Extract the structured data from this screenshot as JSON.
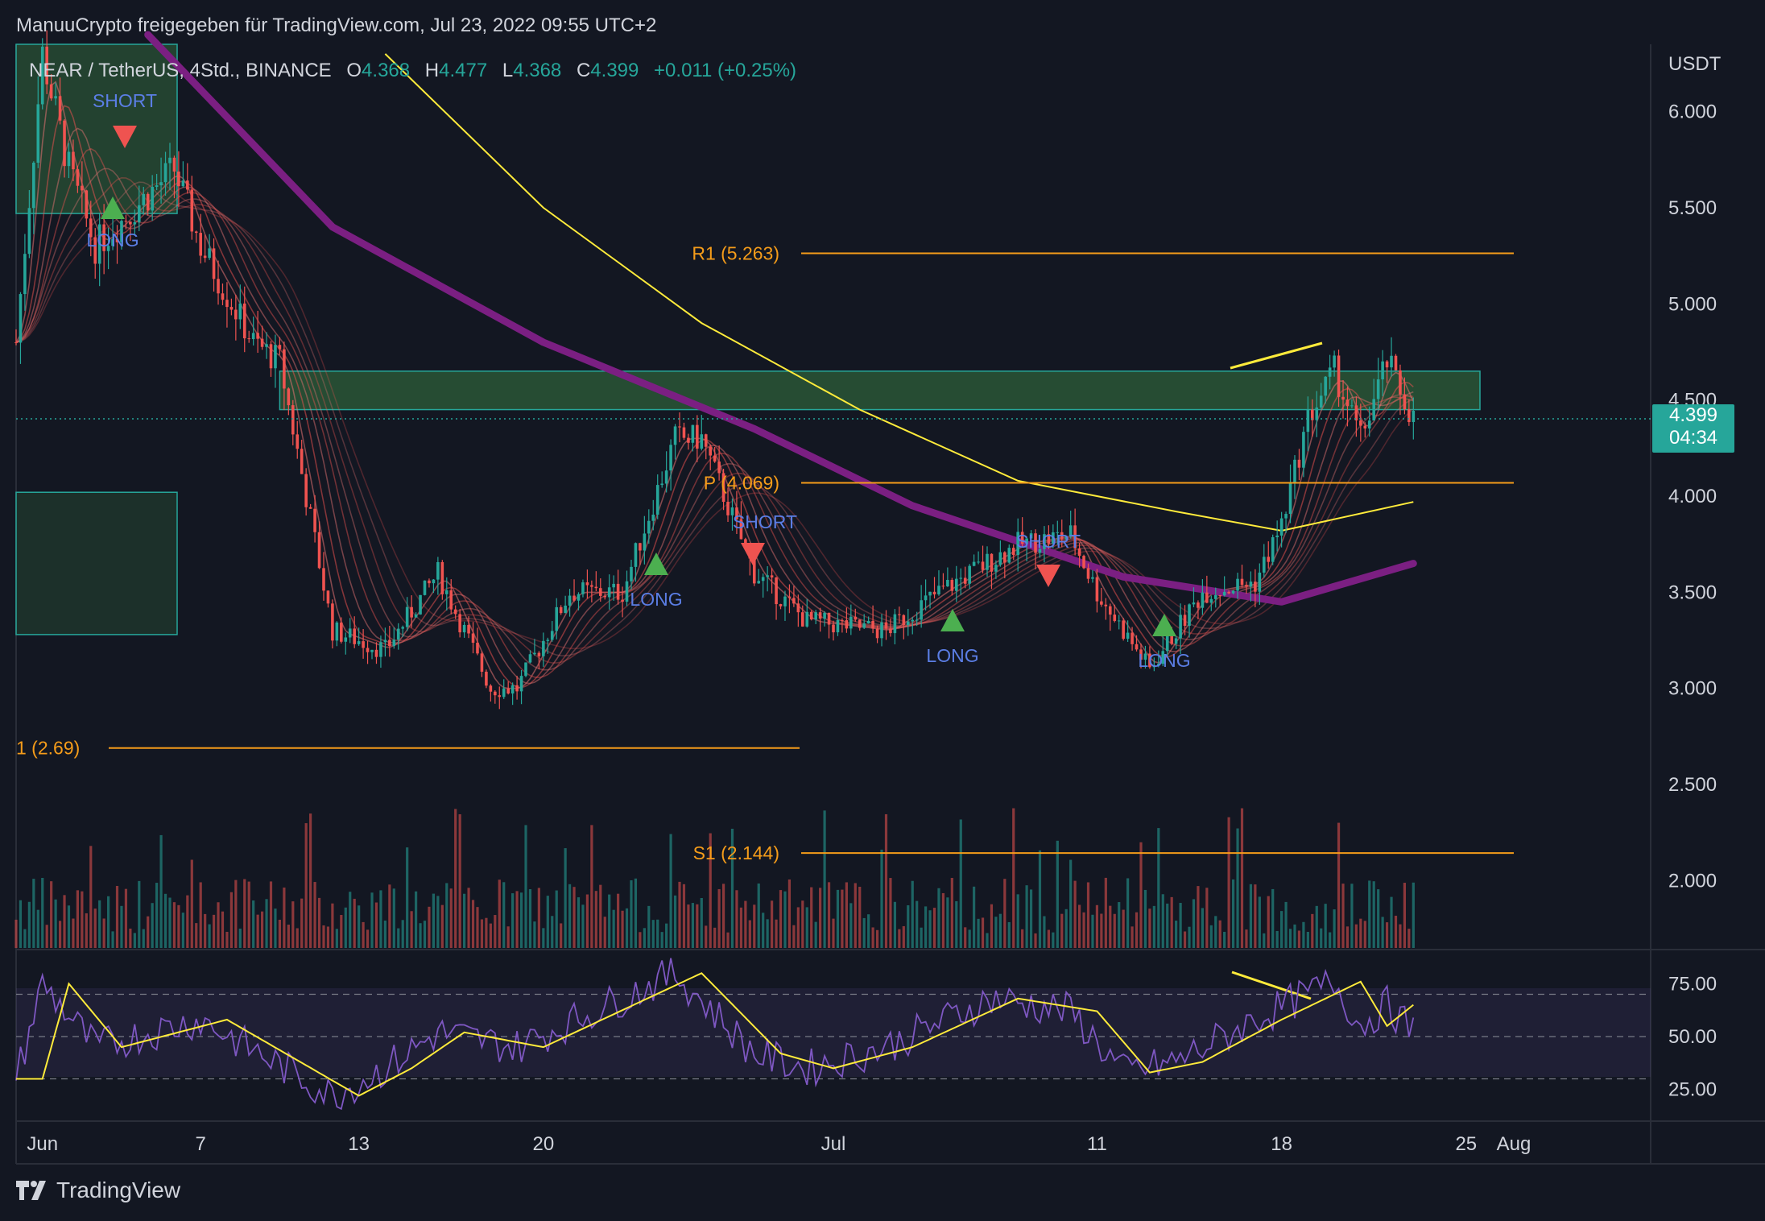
{
  "header": {
    "publisher": "ManuuCrypto freigegeben für TradingView.com, Jul 23, 2022 09:55 UTC+2"
  },
  "legend": {
    "symbol": "NEAR / TetherUS, 4Std., BINANCE",
    "open_label": "O",
    "open": "4.368",
    "high_label": "H",
    "high": "4.477",
    "low_label": "L",
    "low": "4.368",
    "close_label": "C",
    "close": "4.399",
    "change": "+0.011 (+0.25%)"
  },
  "price_axis": {
    "unit": "USDT",
    "ticks": [
      "6.000",
      "5.500",
      "5.000",
      "4.500",
      "4.000",
      "3.500",
      "3.000",
      "2.500",
      "2.000"
    ],
    "last_price": "4.399",
    "countdown": "04:34"
  },
  "time_axis": {
    "ticks": [
      "Jun",
      "7",
      "13",
      "20",
      "Jul",
      "11",
      "18",
      "25",
      "Aug"
    ]
  },
  "rsi_axis": {
    "ticks": [
      "75.00",
      "50.00",
      "25.00"
    ]
  },
  "pivots": [
    {
      "label": "R1 (5.263)",
      "value": 5.263
    },
    {
      "label": "P (4.069)",
      "value": 4.069
    },
    {
      "label": "1 (2.69)",
      "value": 2.69
    },
    {
      "label": "S1 (2.144)",
      "value": 2.144
    }
  ],
  "signals": [
    {
      "label": "SHORT",
      "type": "short"
    },
    {
      "label": "LONG",
      "type": "long"
    },
    {
      "label": "LONG",
      "type": "long"
    },
    {
      "label": "SHORT",
      "type": "short"
    },
    {
      "label": "LONG",
      "type": "long"
    },
    {
      "label": "SHORT",
      "type": "short"
    },
    {
      "label": "LONG",
      "type": "long"
    }
  ],
  "brand": {
    "name": "TradingView"
  },
  "colors": {
    "background": "#131722",
    "up": "#26a69a",
    "down": "#ef5350",
    "pivot": "#f59c1a",
    "ema200": "#7b1f82",
    "ma_yellow": "#ffeb3b",
    "zone": "#2e5f3a",
    "rsi": "#7e57c2"
  },
  "chart_data": {
    "type": "candlestick",
    "symbol": "NEAR/USDT",
    "timeframe": "4h",
    "x_range": [
      "2022-05-31",
      "2022-08-01"
    ],
    "y_range": [
      1.65,
      6.35
    ],
    "price_path": [
      {
        "date": "2022-05-31",
        "price": 4.8
      },
      {
        "date": "2022-06-01",
        "price": 6.3
      },
      {
        "date": "2022-06-02",
        "price": 5.7
      },
      {
        "date": "2022-06-03",
        "price": 5.3
      },
      {
        "date": "2022-06-06",
        "price": 5.7
      },
      {
        "date": "2022-06-07",
        "price": 5.3
      },
      {
        "date": "2022-06-09",
        "price": 4.8
      },
      {
        "date": "2022-06-10",
        "price": 4.7
      },
      {
        "date": "2022-06-11",
        "price": 4.0
      },
      {
        "date": "2022-06-12",
        "price": 3.3
      },
      {
        "date": "2022-06-14",
        "price": 3.2
      },
      {
        "date": "2022-06-16",
        "price": 3.6
      },
      {
        "date": "2022-06-18",
        "price": 3.0
      },
      {
        "date": "2022-06-19",
        "price": 3.0
      },
      {
        "date": "2022-06-21",
        "price": 3.5
      },
      {
        "date": "2022-06-23",
        "price": 3.5
      },
      {
        "date": "2022-06-25",
        "price": 4.3
      },
      {
        "date": "2022-06-26",
        "price": 4.3
      },
      {
        "date": "2022-06-28",
        "price": 3.6
      },
      {
        "date": "2022-06-30",
        "price": 3.35
      },
      {
        "date": "2022-07-03",
        "price": 3.3
      },
      {
        "date": "2022-07-05",
        "price": 3.5
      },
      {
        "date": "2022-07-08",
        "price": 3.75
      },
      {
        "date": "2022-07-10",
        "price": 3.8
      },
      {
        "date": "2022-07-11",
        "price": 3.5
      },
      {
        "date": "2022-07-12",
        "price": 3.3
      },
      {
        "date": "2022-07-13",
        "price": 3.1
      },
      {
        "date": "2022-07-15",
        "price": 3.5
      },
      {
        "date": "2022-07-17",
        "price": 3.55
      },
      {
        "date": "2022-07-18",
        "price": 3.85
      },
      {
        "date": "2022-07-19",
        "price": 4.4
      },
      {
        "date": "2022-07-20",
        "price": 4.65
      },
      {
        "date": "2022-07-21",
        "price": 4.3
      },
      {
        "date": "2022-07-22",
        "price": 4.7
      },
      {
        "date": "2022-07-23",
        "price": 4.399
      }
    ],
    "ema200": [
      {
        "date": "2022-06-05",
        "price": 6.4
      },
      {
        "date": "2022-06-12",
        "price": 5.4
      },
      {
        "date": "2022-06-20",
        "price": 4.8
      },
      {
        "date": "2022-06-28",
        "price": 4.35
      },
      {
        "date": "2022-07-04",
        "price": 3.95
      },
      {
        "date": "2022-07-12",
        "price": 3.58
      },
      {
        "date": "2022-07-18",
        "price": 3.45
      },
      {
        "date": "2022-07-23",
        "price": 3.65
      }
    ],
    "ma_yellow": [
      {
        "date": "2022-06-14",
        "price": 6.3
      },
      {
        "date": "2022-06-20",
        "price": 5.5
      },
      {
        "date": "2022-06-26",
        "price": 4.9
      },
      {
        "date": "2022-07-02",
        "price": 4.45
      },
      {
        "date": "2022-07-08",
        "price": 4.08
      },
      {
        "date": "2022-07-14",
        "price": 3.92
      },
      {
        "date": "2022-07-18",
        "price": 3.82
      },
      {
        "date": "2022-07-23",
        "price": 3.97
      }
    ],
    "supply_zone": {
      "from": "2022-06-10",
      "to": "2022-08-01",
      "low": 4.45,
      "high": 4.65
    },
    "zones_left": [
      {
        "low": 5.47,
        "high": 6.35
      },
      {
        "low": 3.28,
        "high": 4.02
      }
    ],
    "rsi": {
      "range": [
        10,
        90
      ],
      "levels": [
        70,
        50,
        30
      ],
      "path": [
        {
          "date": "2022-05-31",
          "value": 30
        },
        {
          "date": "2022-06-01",
          "value": 75
        },
        {
          "date": "2022-06-03",
          "value": 45
        },
        {
          "date": "2022-06-07",
          "value": 58
        },
        {
          "date": "2022-06-12",
          "value": 22
        },
        {
          "date": "2022-06-14",
          "value": 35
        },
        {
          "date": "2022-06-16",
          "value": 52
        },
        {
          "date": "2022-06-19",
          "value": 45
        },
        {
          "date": "2022-06-25",
          "value": 80
        },
        {
          "date": "2022-06-28",
          "value": 42
        },
        {
          "date": "2022-06-30",
          "value": 35
        },
        {
          "date": "2022-07-03",
          "value": 45
        },
        {
          "date": "2022-07-07",
          "value": 68
        },
        {
          "date": "2022-07-10",
          "value": 62
        },
        {
          "date": "2022-07-12",
          "value": 33
        },
        {
          "date": "2022-07-14",
          "value": 38
        },
        {
          "date": "2022-07-17",
          "value": 58
        },
        {
          "date": "2022-07-20",
          "value": 76
        },
        {
          "date": "2022-07-21",
          "value": 55
        },
        {
          "date": "2022-07-22",
          "value": 65
        },
        {
          "date": "2022-07-23",
          "value": 52
        }
      ]
    }
  }
}
